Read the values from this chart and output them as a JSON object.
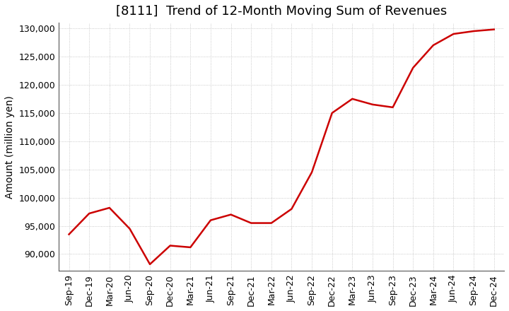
{
  "title": "[8111]  Trend of 12-Month Moving Sum of Revenues",
  "ylabel": "Amount (million yen)",
  "background_color": "#ffffff",
  "grid_color": "#bbbbbb",
  "line_color": "#cc0000",
  "x_labels": [
    "Sep-19",
    "Dec-19",
    "Mar-20",
    "Jun-20",
    "Sep-20",
    "Dec-20",
    "Mar-21",
    "Jun-21",
    "Sep-21",
    "Dec-21",
    "Mar-22",
    "Jun-22",
    "Sep-22",
    "Dec-22",
    "Mar-23",
    "Jun-23",
    "Sep-23",
    "Dec-23",
    "Mar-24",
    "Jun-24",
    "Sep-24",
    "Dec-24"
  ],
  "y_values": [
    93500,
    97200,
    98200,
    94500,
    88200,
    91500,
    91200,
    96000,
    97000,
    95500,
    95500,
    98000,
    104500,
    115000,
    117500,
    116500,
    116000,
    123000,
    127000,
    129000,
    129500,
    129800
  ],
  "ylim": [
    87000,
    131000
  ],
  "yticks": [
    90000,
    95000,
    100000,
    105000,
    110000,
    115000,
    120000,
    125000,
    130000
  ],
  "title_fontsize": 13,
  "axis_fontsize": 10,
  "tick_fontsize": 9
}
